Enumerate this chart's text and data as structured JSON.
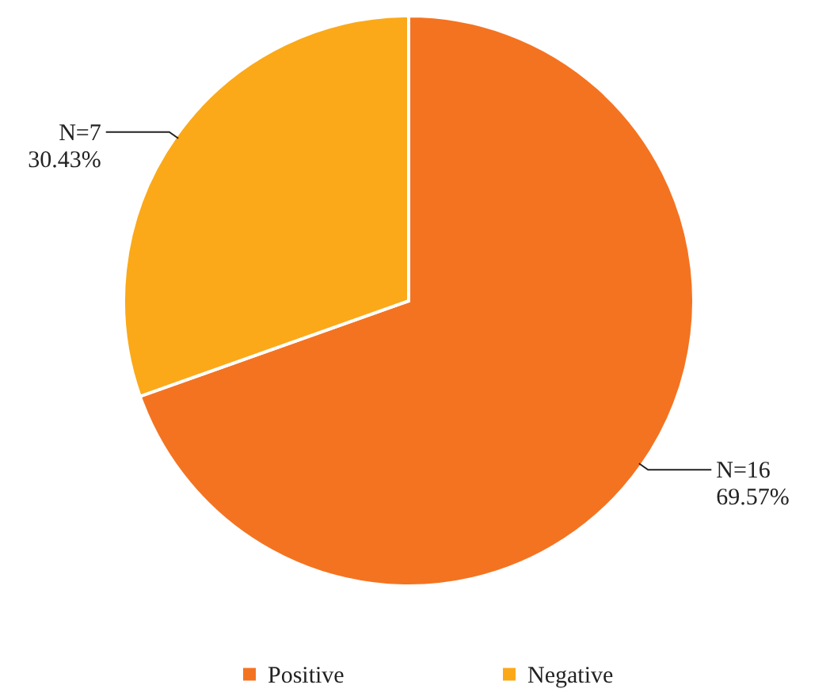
{
  "chart_data": {
    "type": "pie",
    "categories": [
      "Positive",
      "Negative"
    ],
    "values": [
      16,
      7
    ],
    "colors": [
      "#f47321",
      "#fba919"
    ],
    "value_labels": [
      "N=16\n69.57%",
      "N=7\n30.43%"
    ],
    "legend": "bottom"
  }
}
